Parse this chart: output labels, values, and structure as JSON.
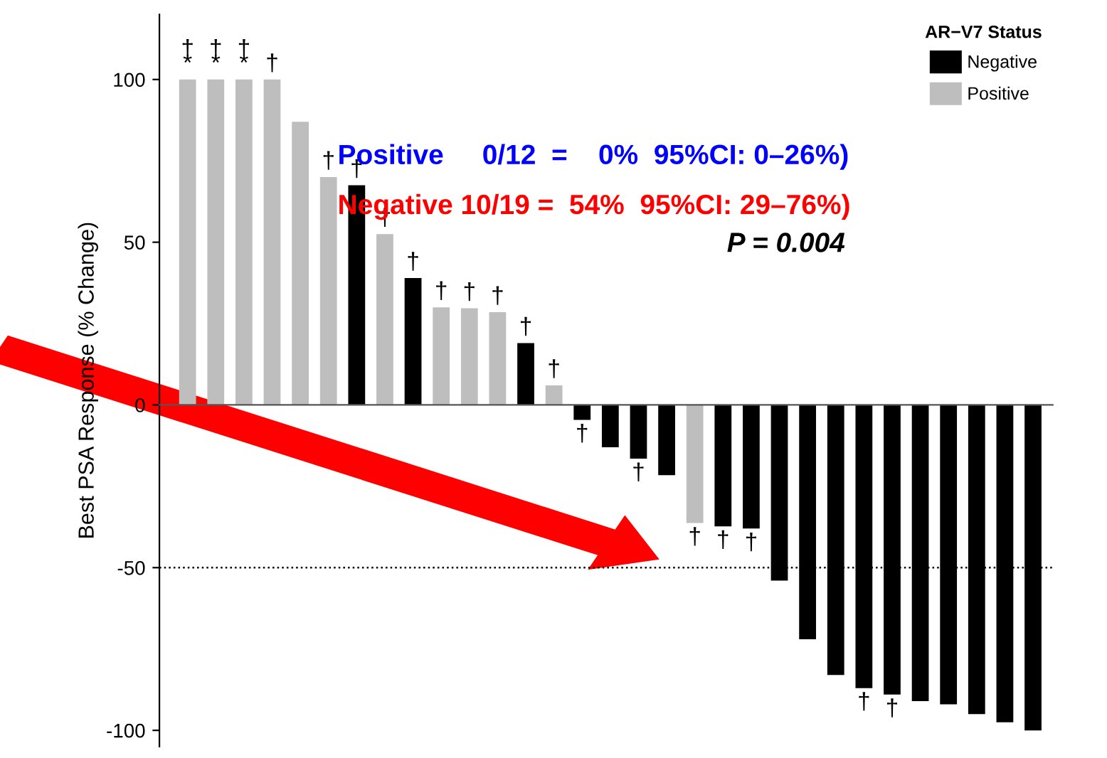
{
  "chart_data": {
    "type": "bar",
    "ylabel": "Best PSA Response (% Change)",
    "categories": [
      null,
      null,
      null,
      null,
      null,
      null,
      null,
      null,
      null,
      null,
      null,
      null,
      null,
      null,
      null,
      null,
      null,
      null,
      null,
      null,
      null,
      null,
      null,
      null,
      null,
      null,
      null,
      null,
      null,
      null,
      null
    ],
    "series": [
      {
        "name": "Negative",
        "color": "#000000",
        "values": [
          null,
          null,
          null,
          null,
          null,
          null,
          67.5,
          null,
          39,
          null,
          null,
          null,
          19,
          null,
          -4.6,
          -13,
          -16.5,
          -21.6,
          null,
          -37.3,
          -38,
          -54,
          -72,
          -83,
          -87,
          -89,
          -91,
          -92,
          -95,
          -97.5,
          -100
        ]
      },
      {
        "name": "Positive",
        "color": "#bebebe",
        "values": [
          100,
          100,
          100,
          100,
          87,
          70,
          null,
          52.5,
          null,
          30,
          29.7,
          28.5,
          null,
          6,
          null,
          null,
          null,
          null,
          -36.3,
          null,
          null,
          null,
          null,
          null,
          null,
          null,
          null,
          null,
          null,
          null,
          null
        ]
      }
    ],
    "value_labels": [
      "†\n*",
      "†\n*",
      "†\n*",
      "†",
      null,
      "†",
      "†",
      "†",
      "†",
      "†",
      "†",
      "†",
      "†",
      "†",
      "†",
      null,
      "†",
      null,
      "†",
      "†",
      "†",
      null,
      null,
      null,
      "†",
      "†",
      null,
      null,
      null,
      null,
      null
    ],
    "ylim": [
      -105,
      120
    ],
    "yticks": [
      -100,
      -50,
      0,
      50,
      100
    ],
    "ref_lines": [
      {
        "axis": "y",
        "value": -50,
        "line_style": "dotted",
        "color": "#000000"
      }
    ],
    "legend": "top right",
    "legend_title": "AR−V7 Status",
    "annotations": [
      "Positive     0/12  =    0%  95%CI: 0–26%)",
      "Negative 10/19 =  54%  95%CI: 29–76%)",
      "P = 0.004"
    ],
    "grid": false
  }
}
